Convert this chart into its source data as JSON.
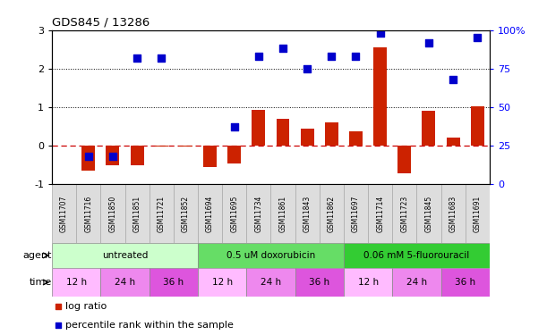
{
  "title": "GDS845 / 13286",
  "samples": [
    "GSM11707",
    "GSM11716",
    "GSM11850",
    "GSM11851",
    "GSM11721",
    "GSM11852",
    "GSM11694",
    "GSM11695",
    "GSM11734",
    "GSM11861",
    "GSM11843",
    "GSM11862",
    "GSM11697",
    "GSM11714",
    "GSM11723",
    "GSM11845",
    "GSM11683",
    "GSM11691"
  ],
  "log_ratio": [
    0.0,
    -0.65,
    -0.5,
    -0.5,
    -0.03,
    -0.02,
    -0.55,
    -0.45,
    0.92,
    0.7,
    0.45,
    0.6,
    0.38,
    2.55,
    -0.72,
    0.9,
    0.22,
    1.02
  ],
  "percentile_pct": [
    null,
    18,
    18,
    82,
    82,
    null,
    null,
    37,
    83,
    88,
    75,
    83,
    83,
    98,
    null,
    92,
    68,
    95
  ],
  "agent_groups": [
    {
      "label": "untreated",
      "start": 0,
      "end": 6,
      "color": "#ccffcc"
    },
    {
      "label": "0.5 uM doxorubicin",
      "start": 6,
      "end": 12,
      "color": "#66dd66"
    },
    {
      "label": "0.06 mM 5-fluorouracil",
      "start": 12,
      "end": 18,
      "color": "#33cc33"
    }
  ],
  "time_groups": [
    {
      "label": "12 h",
      "start": 0,
      "end": 2,
      "color": "#ffbbff"
    },
    {
      "label": "24 h",
      "start": 2,
      "end": 4,
      "color": "#ee88ee"
    },
    {
      "label": "36 h",
      "start": 4,
      "end": 6,
      "color": "#dd55dd"
    },
    {
      "label": "12 h",
      "start": 6,
      "end": 8,
      "color": "#ffbbff"
    },
    {
      "label": "24 h",
      "start": 8,
      "end": 10,
      "color": "#ee88ee"
    },
    {
      "label": "36 h",
      "start": 10,
      "end": 12,
      "color": "#dd55dd"
    },
    {
      "label": "12 h",
      "start": 12,
      "end": 14,
      "color": "#ffbbff"
    },
    {
      "label": "24 h",
      "start": 14,
      "end": 16,
      "color": "#ee88ee"
    },
    {
      "label": "36 h",
      "start": 16,
      "end": 18,
      "color": "#dd55dd"
    }
  ],
  "bar_color": "#cc2200",
  "dot_color": "#0000cc",
  "ylim_left": [
    -1.0,
    3.0
  ],
  "ylim_right": [
    0,
    100
  ],
  "yticks_left": [
    -1,
    0,
    1,
    2,
    3
  ],
  "yticks_right": [
    0,
    25,
    50,
    75,
    100
  ],
  "ytick_labels_right": [
    "0",
    "25",
    "50",
    "75",
    "100%"
  ],
  "bar_width": 0.55,
  "dot_size": 40,
  "sample_box_color": "#dddddd",
  "sample_box_edge": "#aaaaaa"
}
